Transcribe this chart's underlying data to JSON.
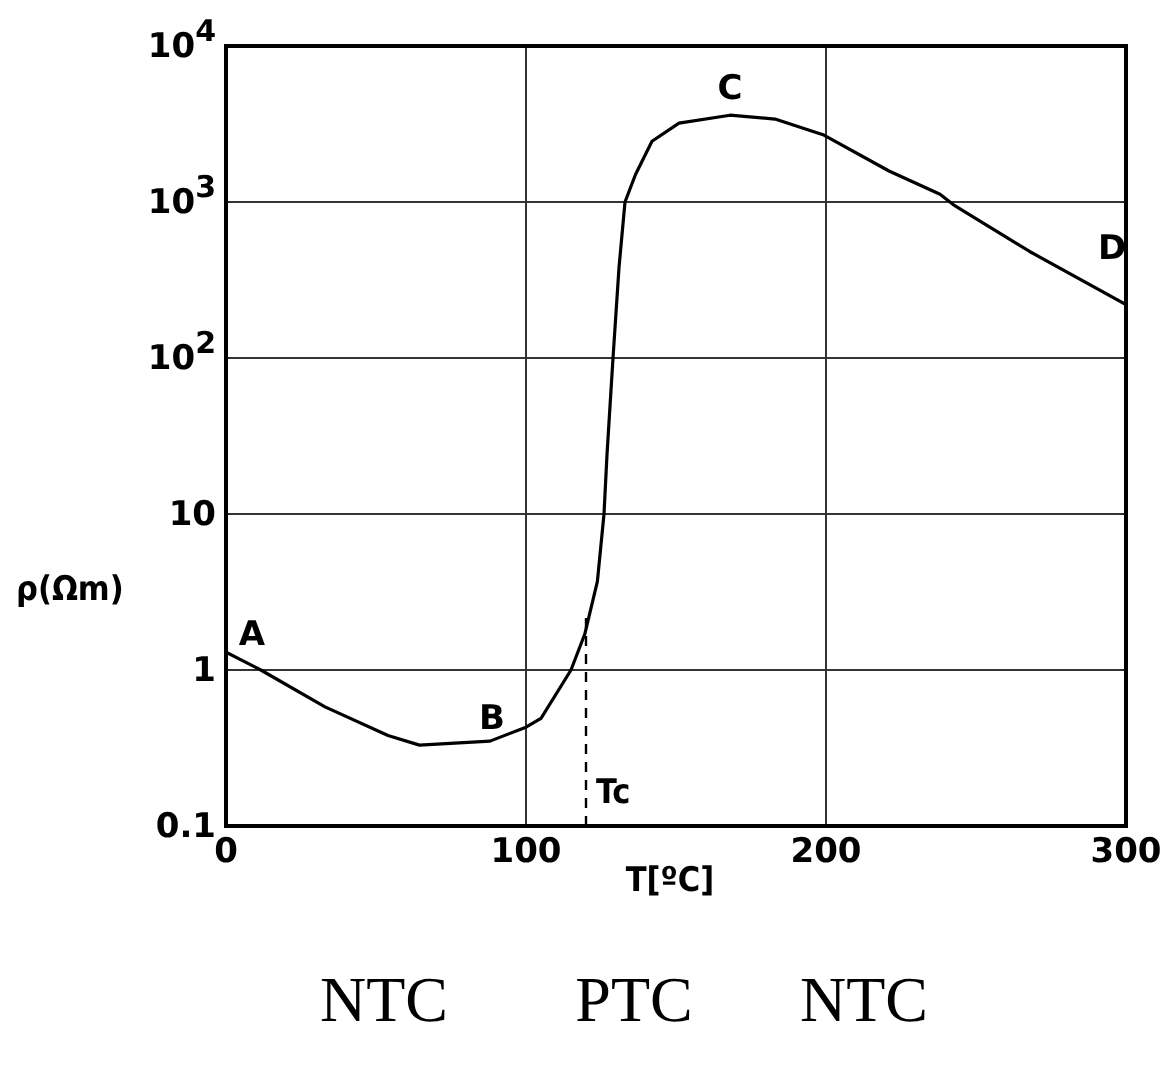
{
  "chart_data": {
    "type": "line",
    "xlabel": "T[ºC]",
    "ylabel": "ρ(Ωm)",
    "log": "y",
    "grid": true,
    "marker": "none",
    "legend": false,
    "x": [
      0,
      11.6,
      33,
      54,
      64.5,
      88,
      100,
      105,
      115,
      119.6,
      123.8,
      126,
      127,
      129,
      131,
      133,
      136.5,
      142,
      151,
      168,
      183,
      199,
      221,
      238,
      242.5,
      268,
      300
    ],
    "series": [
      {
        "color": "#000000",
        "values": [
          1.3,
          1.0,
          0.58,
          0.38,
          0.33,
          0.35,
          0.43,
          0.49,
          1.0,
          1.7,
          3.7,
          10,
          24,
          100,
          380,
          1000,
          1500,
          2450,
          3200,
          3600,
          3400,
          2700,
          1580,
          1120,
          960,
          480,
          220
        ]
      }
    ],
    "xlim": [
      0,
      300
    ],
    "xticks": [
      0,
      100,
      200,
      300
    ],
    "ylim": [
      0.1,
      10000
    ],
    "yticks": [
      0.1,
      1,
      10,
      {
        "value": 100,
        "label": "10$^{2}$"
      },
      {
        "value": 1000,
        "label": "10$^{3}$"
      },
      {
        "value": 10000,
        "label": "10$^{4}$"
      }
    ],
    "ref_lines": [
      {
        "axis": "x",
        "value": 120,
        "label": "Tc",
        "line_style": "dashed",
        "color": "#000000"
      }
    ],
    "annotations": [
      "A",
      "B",
      "C",
      "D",
      "NTC",
      "PTC",
      "NTC"
    ]
  }
}
